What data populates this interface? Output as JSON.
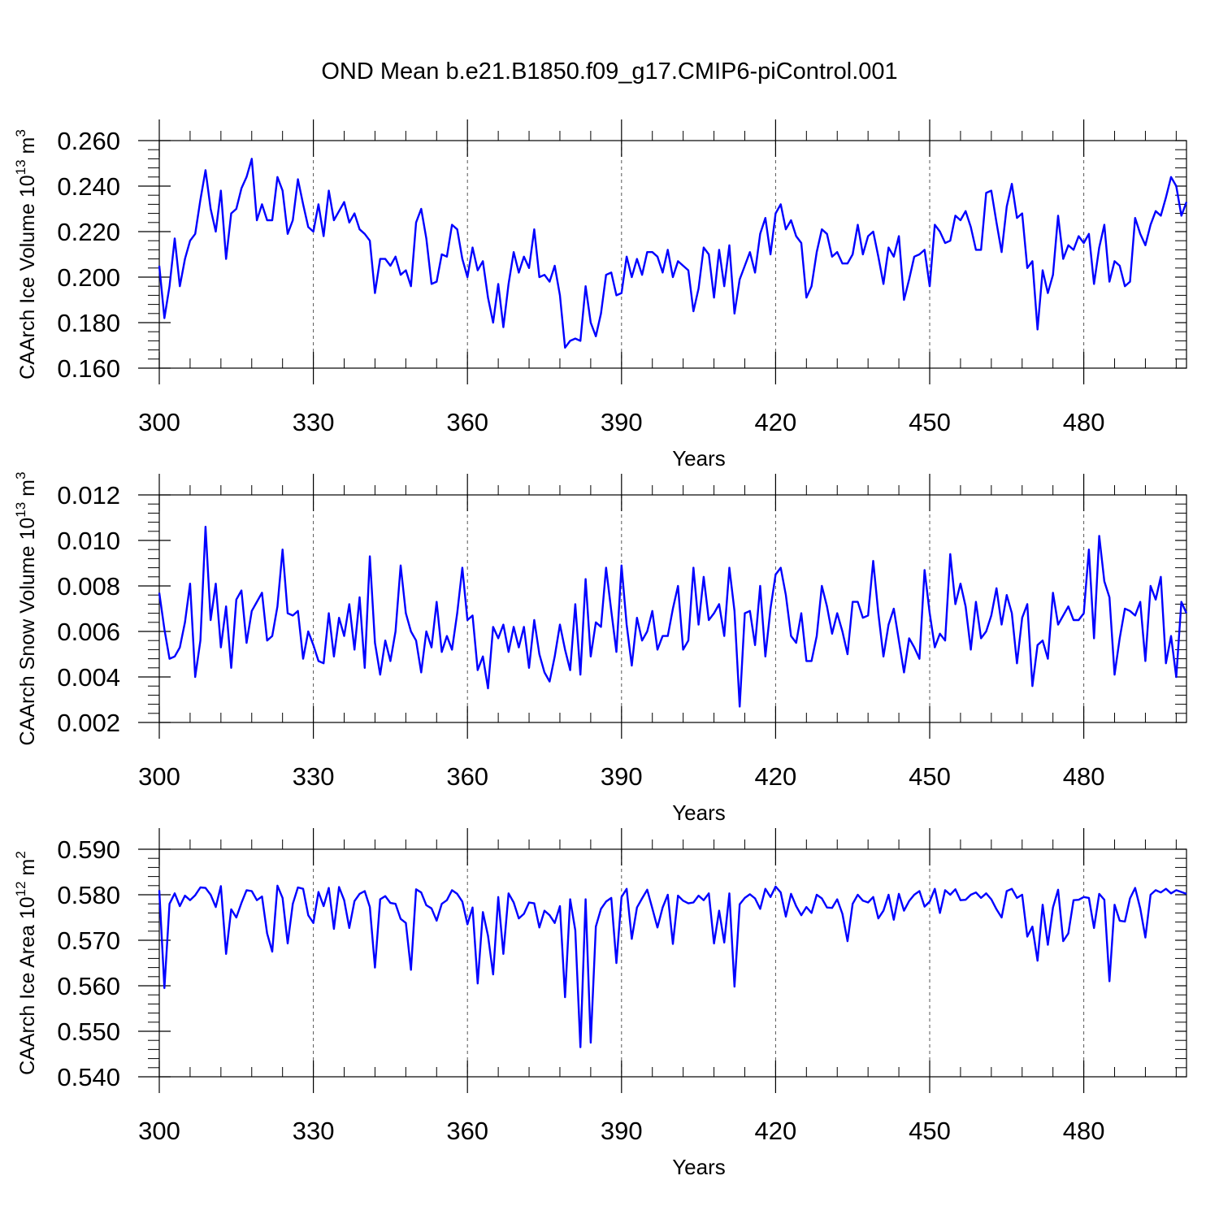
{
  "title": "OND Mean b.e21.B1850.f09_g17.CMIP6-piControl.001",
  "style": {
    "line_color": "#0000ff",
    "grid_color": "#555555"
  },
  "chart_data": [
    {
      "type": "line",
      "xlabel": "Years",
      "ylabel": "CAArch Ice Volume 10",
      "ylabel_exp": "13",
      "ylabel_unit": "m",
      "ylabel_unit_exp": "3",
      "xlim": [
        300,
        500
      ],
      "ylim": [
        0.16,
        0.26
      ],
      "xticks": [
        300,
        330,
        360,
        390,
        420,
        450,
        480
      ],
      "yticks": [
        0.16,
        0.18,
        0.2,
        0.22,
        0.24,
        0.26
      ],
      "ytick_labels": [
        "0.160",
        "0.180",
        "0.200",
        "0.220",
        "0.240",
        "0.260"
      ],
      "grid": "vertical dashed at major x ticks",
      "x_start": 300,
      "values": [
        0.205,
        0.182,
        0.196,
        0.217,
        0.196,
        0.208,
        0.216,
        0.219,
        0.234,
        0.247,
        0.23,
        0.22,
        0.238,
        0.208,
        0.228,
        0.23,
        0.239,
        0.244,
        0.252,
        0.225,
        0.232,
        0.225,
        0.225,
        0.244,
        0.238,
        0.219,
        0.225,
        0.243,
        0.232,
        0.222,
        0.22,
        0.232,
        0.218,
        0.238,
        0.225,
        0.229,
        0.233,
        0.224,
        0.228,
        0.221,
        0.219,
        0.216,
        0.193,
        0.208,
        0.208,
        0.205,
        0.209,
        0.201,
        0.203,
        0.196,
        0.224,
        0.23,
        0.217,
        0.197,
        0.198,
        0.21,
        0.209,
        0.223,
        0.221,
        0.208,
        0.2,
        0.213,
        0.203,
        0.207,
        0.191,
        0.18,
        0.197,
        0.178,
        0.197,
        0.211,
        0.202,
        0.209,
        0.204,
        0.221,
        0.2,
        0.201,
        0.198,
        0.205,
        0.192,
        0.169,
        0.172,
        0.173,
        0.172,
        0.196,
        0.18,
        0.174,
        0.184,
        0.201,
        0.202,
        0.192,
        0.193,
        0.209,
        0.2,
        0.208,
        0.201,
        0.211,
        0.211,
        0.209,
        0.202,
        0.212,
        0.2,
        0.207,
        0.205,
        0.203,
        0.185,
        0.195,
        0.213,
        0.21,
        0.191,
        0.212,
        0.196,
        0.214,
        0.184,
        0.199,
        0.205,
        0.211,
        0.202,
        0.219,
        0.226,
        0.21,
        0.228,
        0.232,
        0.221,
        0.225,
        0.218,
        0.215,
        0.191,
        0.196,
        0.211,
        0.221,
        0.219,
        0.209,
        0.211,
        0.206,
        0.206,
        0.21,
        0.223,
        0.21,
        0.218,
        0.22,
        0.209,
        0.197,
        0.213,
        0.209,
        0.218,
        0.19,
        0.199,
        0.209,
        0.21,
        0.212,
        0.196,
        0.223,
        0.22,
        0.215,
        0.216,
        0.227,
        0.225,
        0.229,
        0.222,
        0.212,
        0.212,
        0.237,
        0.238,
        0.224,
        0.211,
        0.231,
        0.241,
        0.226,
        0.228,
        0.204,
        0.207,
        0.177,
        0.203,
        0.193,
        0.201,
        0.227,
        0.208,
        0.214,
        0.212,
        0.218,
        0.215,
        0.219,
        0.197,
        0.213,
        0.223,
        0.198,
        0.207,
        0.205,
        0.196,
        0.198,
        0.226,
        0.219,
        0.214,
        0.223,
        0.229,
        0.227,
        0.235,
        0.244,
        0.24,
        0.227,
        0.233
      ]
    },
    {
      "type": "line",
      "xlabel": "Years",
      "ylabel": "CAArch Snow Volume 10",
      "ylabel_exp": "13",
      "ylabel_unit": "m",
      "ylabel_unit_exp": "3",
      "xlim": [
        300,
        500
      ],
      "ylim": [
        0.002,
        0.012
      ],
      "xticks": [
        300,
        330,
        360,
        390,
        420,
        450,
        480
      ],
      "yticks": [
        0.002,
        0.004,
        0.006,
        0.008,
        0.01,
        0.012
      ],
      "ytick_labels": [
        "0.002",
        "0.004",
        "0.006",
        "0.008",
        "0.010",
        "0.012"
      ],
      "grid": "vertical dashed at major x ticks",
      "x_start": 300,
      "values": [
        0.0077,
        0.0061,
        0.0048,
        0.0049,
        0.0053,
        0.0064,
        0.0081,
        0.004,
        0.0056,
        0.0106,
        0.0065,
        0.0081,
        0.0053,
        0.0071,
        0.0044,
        0.0074,
        0.0078,
        0.0055,
        0.0069,
        0.0073,
        0.0077,
        0.0056,
        0.0058,
        0.0071,
        0.0096,
        0.0068,
        0.0067,
        0.0069,
        0.0048,
        0.006,
        0.0054,
        0.0047,
        0.0046,
        0.0068,
        0.0049,
        0.0066,
        0.0058,
        0.0072,
        0.0052,
        0.0075,
        0.0044,
        0.0093,
        0.0055,
        0.0041,
        0.0056,
        0.0047,
        0.006,
        0.0089,
        0.0068,
        0.006,
        0.0056,
        0.0042,
        0.006,
        0.0053,
        0.0073,
        0.0051,
        0.0058,
        0.0052,
        0.0068,
        0.0088,
        0.0065,
        0.0067,
        0.0043,
        0.0049,
        0.0035,
        0.0062,
        0.0057,
        0.0063,
        0.0051,
        0.0062,
        0.0053,
        0.0062,
        0.0044,
        0.0065,
        0.005,
        0.0042,
        0.0038,
        0.0049,
        0.0063,
        0.0052,
        0.0043,
        0.0072,
        0.0041,
        0.0083,
        0.0049,
        0.0064,
        0.0062,
        0.0088,
        0.0069,
        0.0051,
        0.0089,
        0.0063,
        0.0045,
        0.0066,
        0.0056,
        0.006,
        0.0069,
        0.0052,
        0.0058,
        0.0058,
        0.007,
        0.008,
        0.0052,
        0.0056,
        0.0088,
        0.0063,
        0.0084,
        0.0065,
        0.0068,
        0.0072,
        0.0058,
        0.0088,
        0.0069,
        0.0027,
        0.0068,
        0.0069,
        0.0054,
        0.008,
        0.0049,
        0.007,
        0.0085,
        0.0088,
        0.0076,
        0.0058,
        0.0055,
        0.0068,
        0.0047,
        0.0047,
        0.0058,
        0.008,
        0.0071,
        0.0059,
        0.0068,
        0.006,
        0.005,
        0.0073,
        0.0073,
        0.0066,
        0.0067,
        0.0091,
        0.0068,
        0.0049,
        0.0063,
        0.007,
        0.0056,
        0.0042,
        0.0057,
        0.0053,
        0.0048,
        0.0087,
        0.0068,
        0.0053,
        0.0059,
        0.0056,
        0.0094,
        0.0072,
        0.0081,
        0.0071,
        0.0052,
        0.0073,
        0.0057,
        0.006,
        0.0067,
        0.0079,
        0.0063,
        0.0076,
        0.0068,
        0.0046,
        0.0066,
        0.0072,
        0.0036,
        0.0054,
        0.0056,
        0.0048,
        0.0077,
        0.0063,
        0.0067,
        0.0071,
        0.0065,
        0.0065,
        0.0068,
        0.0096,
        0.0057,
        0.0102,
        0.0082,
        0.0075,
        0.0041,
        0.0057,
        0.007,
        0.0069,
        0.0067,
        0.0073,
        0.0047,
        0.008,
        0.0074,
        0.0084,
        0.0046,
        0.0058,
        0.004,
        0.0073,
        0.0068
      ]
    },
    {
      "type": "line",
      "xlabel": "Years",
      "ylabel": "CAArch Ice Area 10",
      "ylabel_exp": "12",
      "ylabel_unit": "m",
      "ylabel_unit_exp": "2",
      "xlim": [
        300,
        500
      ],
      "ylim": [
        0.54,
        0.59
      ],
      "xticks": [
        300,
        330,
        360,
        390,
        420,
        450,
        480
      ],
      "yticks": [
        0.54,
        0.55,
        0.56,
        0.57,
        0.58,
        0.59
      ],
      "ytick_labels": [
        "0.540",
        "0.550",
        "0.560",
        "0.570",
        "0.580",
        "0.590"
      ],
      "grid": "vertical dashed at major x ticks",
      "x_start": 300,
      "values": [
        0.581,
        0.5595,
        0.578,
        0.5803,
        0.5775,
        0.5798,
        0.5788,
        0.5799,
        0.5816,
        0.5815,
        0.58,
        0.5773,
        0.5819,
        0.567,
        0.5768,
        0.575,
        0.5782,
        0.581,
        0.5808,
        0.5788,
        0.5796,
        0.5715,
        0.5675,
        0.582,
        0.5793,
        0.5693,
        0.578,
        0.5816,
        0.5813,
        0.5755,
        0.5738,
        0.5806,
        0.5775,
        0.5815,
        0.5725,
        0.5817,
        0.5788,
        0.5727,
        0.5786,
        0.5802,
        0.5808,
        0.5773,
        0.564,
        0.579,
        0.5797,
        0.5782,
        0.578,
        0.5747,
        0.5738,
        0.5635,
        0.5812,
        0.5805,
        0.5777,
        0.577,
        0.5743,
        0.578,
        0.5788,
        0.581,
        0.5802,
        0.5785,
        0.5735,
        0.5772,
        0.5605,
        0.5762,
        0.571,
        0.5625,
        0.5795,
        0.567,
        0.5803,
        0.5783,
        0.5748,
        0.5758,
        0.5783,
        0.5781,
        0.5728,
        0.5765,
        0.5755,
        0.5738,
        0.5775,
        0.5575,
        0.579,
        0.5722,
        0.5465,
        0.579,
        0.5475,
        0.573,
        0.5769,
        0.5785,
        0.5793,
        0.565,
        0.5795,
        0.5813,
        0.5703,
        0.5772,
        0.5792,
        0.5811,
        0.577,
        0.5728,
        0.5772,
        0.58,
        0.5692,
        0.5798,
        0.5787,
        0.5781,
        0.5783,
        0.5798,
        0.5788,
        0.5803,
        0.5693,
        0.5765,
        0.5695,
        0.5803,
        0.5598,
        0.5779,
        0.5793,
        0.5801,
        0.5792,
        0.5769,
        0.5813,
        0.5795,
        0.5818,
        0.5805,
        0.5752,
        0.5802,
        0.5775,
        0.5755,
        0.5773,
        0.576,
        0.58,
        0.5792,
        0.5772,
        0.5771,
        0.579,
        0.5758,
        0.5698,
        0.578,
        0.58,
        0.5787,
        0.5783,
        0.5795,
        0.5748,
        0.5765,
        0.58,
        0.5745,
        0.5802,
        0.5765,
        0.5786,
        0.58,
        0.5808,
        0.5774,
        0.5785,
        0.5813,
        0.576,
        0.581,
        0.58,
        0.5812,
        0.5788,
        0.5789,
        0.58,
        0.5805,
        0.5793,
        0.5803,
        0.579,
        0.5768,
        0.575,
        0.5808,
        0.5813,
        0.5793,
        0.58,
        0.5708,
        0.573,
        0.5655,
        0.5778,
        0.569,
        0.5772,
        0.5811,
        0.5698,
        0.5715,
        0.5788,
        0.5789,
        0.5795,
        0.5793,
        0.5727,
        0.5802,
        0.5789,
        0.561,
        0.5778,
        0.5743,
        0.5741,
        0.5792,
        0.5815,
        0.577,
        0.5706,
        0.58,
        0.581,
        0.5805,
        0.5813,
        0.5803,
        0.581,
        0.5806,
        0.5802
      ]
    }
  ]
}
